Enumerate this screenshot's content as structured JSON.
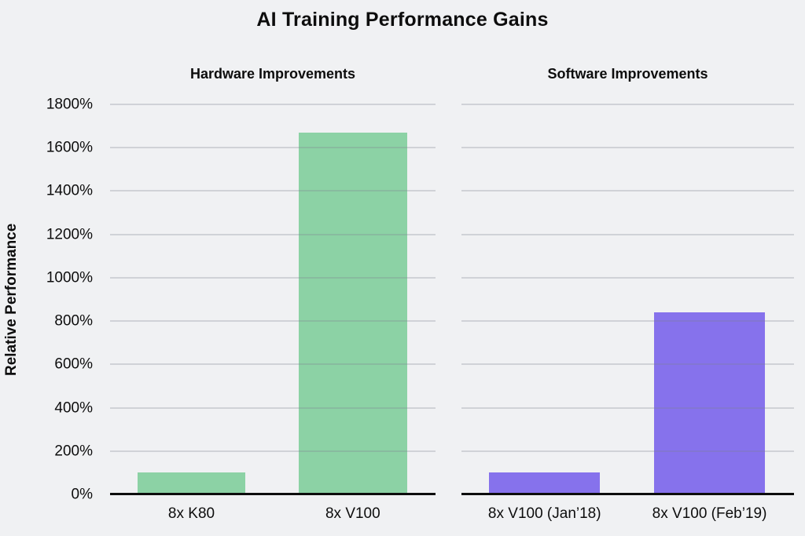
{
  "page": {
    "colors": {
      "background": "#f0f1f3",
      "text": "#0d0d0d",
      "gridline": "#d8dadd",
      "axis_line": "#0d0d0d",
      "bar_green": "#8cd2a5",
      "bar_purple": "#8672ec"
    }
  },
  "chart_data": {
    "type": "bar",
    "title": "AI Training Performance Gains",
    "ylabel": "Relative Performance",
    "xlabel": "",
    "ylim": [
      0,
      1800
    ],
    "grid": true,
    "legend": "none",
    "ytick_values": [
      0,
      200,
      400,
      600,
      800,
      1000,
      1200,
      1400,
      1600,
      1800
    ],
    "ytick_labels": [
      "0%",
      "200%",
      "400%",
      "600%",
      "800%",
      "1000%",
      "1200%",
      "1400%",
      "1600%",
      "1800%"
    ],
    "panels": [
      {
        "subtitle": "Hardware Improvements",
        "bar_color": "#8cd2a5",
        "categories": [
          "8x K80",
          "8x V100"
        ],
        "values": [
          100,
          1670
        ]
      },
      {
        "subtitle": "Software Improvements",
        "bar_color": "#8672ec",
        "categories": [
          "8x V100 (Jan’18)",
          "8x V100 (Feb’19)"
        ],
        "values": [
          100,
          840
        ]
      }
    ]
  }
}
